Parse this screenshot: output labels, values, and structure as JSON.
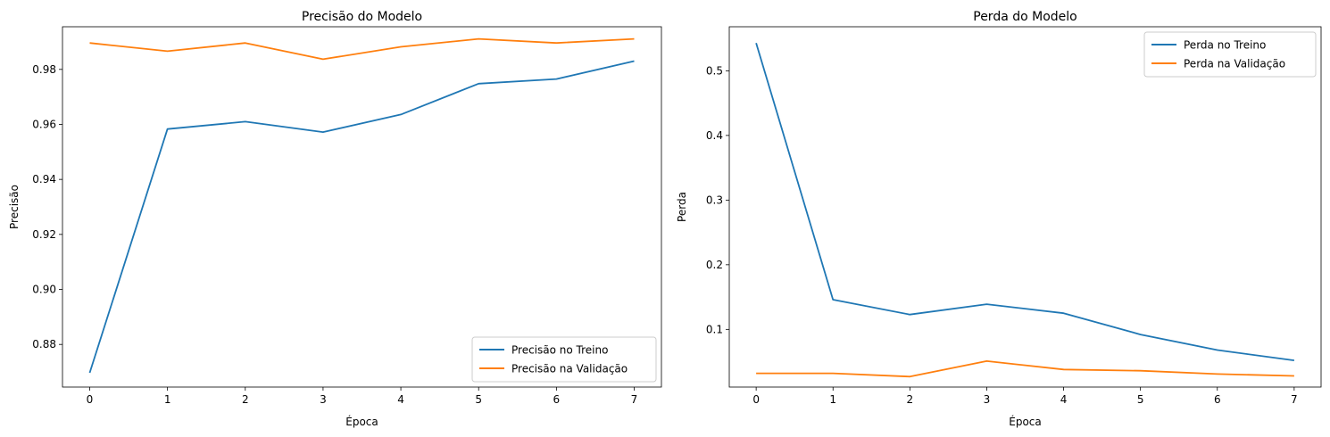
{
  "chart_data": [
    {
      "type": "line",
      "title": "Precisão do Modelo",
      "xlabel": "Época",
      "ylabel": "Precisão",
      "x": [
        0,
        1,
        2,
        3,
        4,
        5,
        6,
        7
      ],
      "xlim": [
        -0.35,
        7.35
      ],
      "ylim": [
        0.8645,
        0.9955
      ],
      "xticks": [
        0,
        1,
        2,
        3,
        4,
        5,
        6,
        7
      ],
      "yticks": [
        0.88,
        0.9,
        0.92,
        0.94,
        0.96,
        0.98
      ],
      "ytick_labels": [
        "0.88",
        "0.90",
        "0.92",
        "0.94",
        "0.96",
        "0.98"
      ],
      "legend_position": "lower-right",
      "series": [
        {
          "name": "Precisão no Treino",
          "color": "#1f77b4",
          "values": [
            0.8697,
            0.9583,
            0.961,
            0.9572,
            0.9636,
            0.9748,
            0.9765,
            0.983
          ]
        },
        {
          "name": "Precisão na Validação",
          "color": "#ff7f0e",
          "values": [
            0.9896,
            0.9866,
            0.9896,
            0.9837,
            0.9882,
            0.9911,
            0.9896,
            0.9911
          ]
        }
      ]
    },
    {
      "type": "line",
      "title": "Perda do Modelo",
      "xlabel": "Época",
      "ylabel": "Perda",
      "x": [
        0,
        1,
        2,
        3,
        4,
        5,
        6,
        7
      ],
      "xlim": [
        -0.35,
        7.35
      ],
      "ylim": [
        0.0108,
        0.5681
      ],
      "xticks": [
        0,
        1,
        2,
        3,
        4,
        5,
        6,
        7
      ],
      "yticks": [
        0.1,
        0.2,
        0.3,
        0.4,
        0.5
      ],
      "ytick_labels": [
        "0.1",
        "0.2",
        "0.3",
        "0.4",
        "0.5"
      ],
      "legend_position": "upper-right",
      "series": [
        {
          "name": "Perda no Treino",
          "color": "#1f77b4",
          "values": [
            0.543,
            0.146,
            0.123,
            0.139,
            0.125,
            0.092,
            0.068,
            0.052
          ]
        },
        {
          "name": "Perda na Validação",
          "color": "#ff7f0e",
          "values": [
            0.032,
            0.032,
            0.027,
            0.051,
            0.038,
            0.036,
            0.031,
            0.028
          ]
        }
      ]
    }
  ]
}
